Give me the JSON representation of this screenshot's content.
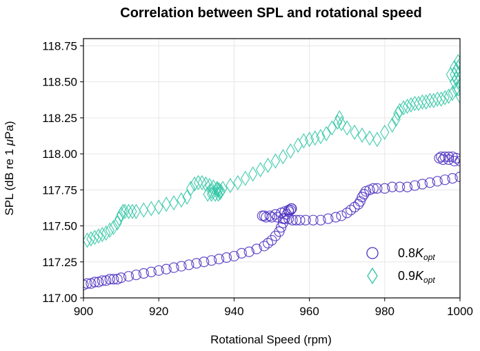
{
  "chart_data": {
    "type": "scatter",
    "title": "Correlation between SPL and rotational speed",
    "xlabel": "Rotational Speed (rpm)",
    "ylabel_prefix": "SPL (dB re 1 ",
    "ylabel_mu": "μ",
    "ylabel_suffix": "Pa)",
    "xlim": [
      900,
      1000
    ],
    "ylim": [
      117.0,
      118.8
    ],
    "xticks": [
      900,
      920,
      940,
      960,
      980,
      1000
    ],
    "yticks": [
      117.0,
      117.25,
      117.5,
      117.75,
      118.0,
      118.25,
      118.5,
      118.75
    ],
    "ytick_labels": [
      "117.00",
      "117.25",
      "117.50",
      "117.75",
      "118.00",
      "118.25",
      "118.50",
      "118.75"
    ],
    "grid": true,
    "legend_position": "bottom-right",
    "series": [
      {
        "legend_prefix": "0.8",
        "legend_k": "K",
        "legend_sub": "opt",
        "marker": "circle",
        "color": "#4b2fbf",
        "x": [
          900,
          901,
          902,
          903,
          904,
          905,
          906,
          907,
          908,
          909,
          910,
          912,
          914,
          916,
          918,
          920,
          922,
          924,
          926,
          928,
          930,
          932,
          934,
          936,
          938,
          940,
          942,
          944,
          946,
          948,
          949,
          950,
          951,
          952,
          952.5,
          953,
          953.5,
          954,
          954.5,
          955,
          955.3,
          955.2,
          954.5,
          953.5,
          952.5,
          951,
          949.5,
          948,
          947.5,
          948.5,
          950,
          951.5,
          953,
          954.5,
          955.5,
          956.5,
          957.5,
          959,
          961,
          963,
          965,
          967,
          968.5,
          970,
          971,
          972,
          973,
          973.5,
          974,
          974.5,
          975,
          976,
          977,
          978,
          980,
          982,
          984,
          986,
          988,
          990,
          992,
          994,
          996,
          998,
          1000,
          999,
          998,
          997,
          996,
          995,
          994.5,
          995.5,
          997,
          998.5,
          1000
        ],
        "y": [
          117.09,
          117.1,
          117.1,
          117.11,
          117.11,
          117.12,
          117.12,
          117.13,
          117.13,
          117.13,
          117.14,
          117.15,
          117.16,
          117.17,
          117.18,
          117.19,
          117.2,
          117.21,
          117.22,
          117.23,
          117.24,
          117.25,
          117.26,
          117.27,
          117.28,
          117.29,
          117.31,
          117.32,
          117.34,
          117.36,
          117.38,
          117.4,
          117.43,
          117.46,
          117.49,
          117.52,
          117.55,
          117.58,
          117.6,
          117.61,
          117.62,
          117.62,
          117.61,
          117.6,
          117.59,
          117.58,
          117.57,
          117.57,
          117.57,
          117.56,
          117.56,
          117.56,
          117.55,
          117.55,
          117.54,
          117.54,
          117.54,
          117.54,
          117.54,
          117.54,
          117.55,
          117.56,
          117.57,
          117.59,
          117.61,
          117.63,
          117.65,
          117.67,
          117.7,
          117.72,
          117.74,
          117.75,
          117.76,
          117.76,
          117.76,
          117.77,
          117.77,
          117.77,
          117.78,
          117.79,
          117.8,
          117.81,
          117.82,
          117.83,
          117.84,
          117.97,
          117.98,
          117.98,
          117.98,
          117.98,
          117.97,
          117.96,
          117.96,
          117.95,
          117.95
        ]
      },
      {
        "legend_prefix": "0.9",
        "legend_k": "K",
        "legend_sub": "opt",
        "marker": "diamond",
        "color": "#2fc6a4",
        "x": [
          901,
          902,
          903,
          904,
          905,
          906,
          907,
          908,
          909,
          909.5,
          910,
          910.5,
          911,
          912,
          913,
          914,
          916,
          918,
          920,
          922,
          924,
          926,
          927.5,
          928.5,
          929.5,
          930.5,
          931.5,
          932.5,
          933.5,
          934.5,
          935.5,
          936,
          936.5,
          936.3,
          935.8,
          935,
          934,
          933,
          934,
          935.5,
          937,
          939,
          941,
          943,
          945,
          947,
          949,
          951,
          953,
          955,
          957,
          958.5,
          960,
          961.5,
          963,
          964.5,
          966,
          967.5,
          968,
          968.5,
          970,
          972,
          974,
          976,
          978,
          980,
          982,
          983,
          983.5,
          984,
          985,
          986,
          987,
          988,
          989,
          990,
          991,
          992,
          993,
          994,
          995,
          996,
          997,
          998,
          999,
          1000,
          999.5,
          999,
          998.5,
          999,
          999.5,
          1000,
          999.5,
          998.5,
          997.5,
          998.5,
          999.5,
          1000
        ],
        "y": [
          117.4,
          117.41,
          117.42,
          117.43,
          117.44,
          117.45,
          117.47,
          117.49,
          117.52,
          117.55,
          117.58,
          117.6,
          117.6,
          117.6,
          117.6,
          117.6,
          117.61,
          117.62,
          117.63,
          117.65,
          117.66,
          117.68,
          117.7,
          117.76,
          117.79,
          117.8,
          117.8,
          117.79,
          117.78,
          117.77,
          117.76,
          117.75,
          117.74,
          117.73,
          117.72,
          117.72,
          117.72,
          117.72,
          117.74,
          117.75,
          117.76,
          117.78,
          117.8,
          117.83,
          117.86,
          117.89,
          117.92,
          117.95,
          117.98,
          118.02,
          118.06,
          118.09,
          118.1,
          118.11,
          118.12,
          118.14,
          118.18,
          118.22,
          118.25,
          118.21,
          118.18,
          118.15,
          118.13,
          118.11,
          118.1,
          118.15,
          118.2,
          118.24,
          118.28,
          118.3,
          118.32,
          118.33,
          118.34,
          118.35,
          118.35,
          118.36,
          118.36,
          118.37,
          118.37,
          118.38,
          118.38,
          118.39,
          118.4,
          118.42,
          118.45,
          118.48,
          118.5,
          118.52,
          118.55,
          118.58,
          118.6,
          118.62,
          118.64,
          118.6,
          118.55,
          118.5,
          118.45,
          118.4
        ]
      }
    ]
  }
}
